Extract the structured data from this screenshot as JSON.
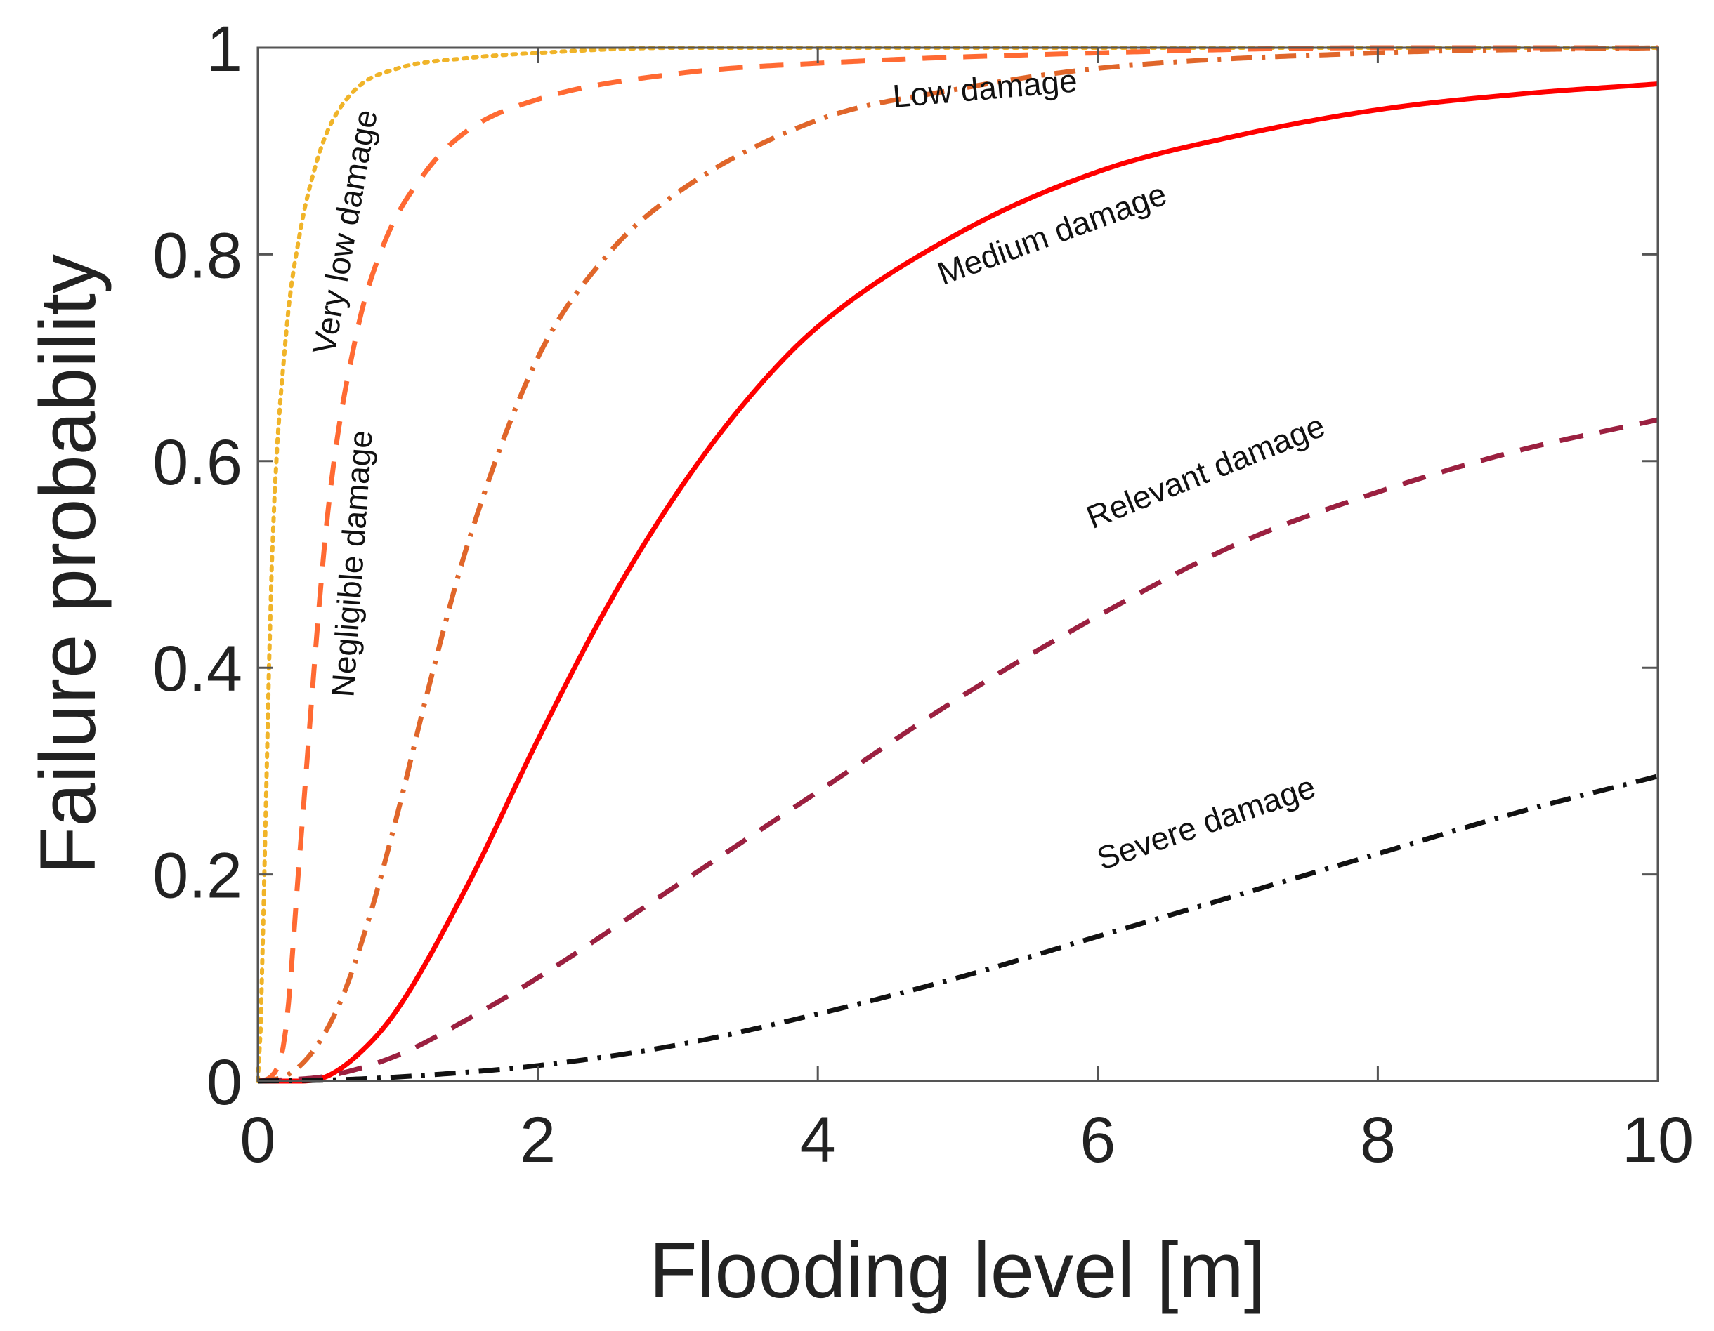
{
  "chart_data": {
    "type": "line",
    "xlabel": "Flooding level [m]",
    "ylabel": "Failure probability",
    "xlim": [
      0,
      10
    ],
    "ylim": [
      0,
      1
    ],
    "xticks": [
      0,
      2,
      4,
      6,
      8,
      10
    ],
    "yticks": [
      0,
      0.2,
      0.4,
      0.6,
      0.8,
      1
    ],
    "xtick_labels": [
      "0",
      "2",
      "4",
      "6",
      "8",
      "10"
    ],
    "ytick_labels": [
      "0",
      "0.2",
      "0.4",
      "0.6",
      "0.8",
      "1"
    ],
    "grid": false,
    "legend": "none",
    "series": [
      {
        "name": "Very low damage",
        "color": "#f0b429",
        "style": "dotted",
        "x": [
          0,
          0.02,
          0.05,
          0.1,
          0.2,
          0.3,
          0.4,
          0.5,
          0.7,
          1,
          1.5,
          2,
          3,
          5,
          10
        ],
        "y": [
          0,
          0.05,
          0.22,
          0.5,
          0.72,
          0.82,
          0.88,
          0.92,
          0.96,
          0.98,
          0.99,
          0.995,
          1,
          1,
          1
        ]
      },
      {
        "name": "Negligible damage",
        "color": "#ff6a33",
        "style": "dashed",
        "x": [
          0,
          0.1,
          0.2,
          0.3,
          0.5,
          0.7,
          0.9,
          1.2,
          1.5,
          2,
          3,
          4,
          6,
          8,
          10
        ],
        "y": [
          0,
          0.005,
          0.05,
          0.22,
          0.55,
          0.72,
          0.81,
          0.88,
          0.92,
          0.95,
          0.975,
          0.985,
          0.995,
          1,
          1
        ]
      },
      {
        "name": "Low damage",
        "color": "#e0662a",
        "style": "dashdot",
        "x": [
          0,
          0.2,
          0.4,
          0.6,
          0.8,
          1,
          1.2,
          1.5,
          2,
          2.5,
          3,
          4,
          5,
          6,
          8,
          10
        ],
        "y": [
          0,
          0.005,
          0.03,
          0.08,
          0.16,
          0.26,
          0.37,
          0.52,
          0.7,
          0.8,
          0.86,
          0.93,
          0.96,
          0.98,
          0.995,
          1
        ]
      },
      {
        "name": "Medium damage",
        "color": "#ff0000",
        "style": "solid",
        "x": [
          0,
          0.3,
          0.5,
          0.75,
          1,
          1.5,
          2,
          2.5,
          3,
          3.5,
          4,
          5,
          6,
          7,
          8,
          9,
          10
        ],
        "y": [
          0,
          0,
          0.005,
          0.03,
          0.07,
          0.19,
          0.33,
          0.46,
          0.57,
          0.66,
          0.73,
          0.82,
          0.88,
          0.915,
          0.94,
          0.955,
          0.965
        ]
      },
      {
        "name": "Relevant damage",
        "color": "#9b2040",
        "style": "dashed",
        "x": [
          0,
          0.5,
          1,
          1.5,
          2,
          3,
          4,
          5,
          6,
          7,
          8,
          9,
          10
        ],
        "y": [
          0,
          0.005,
          0.025,
          0.06,
          0.1,
          0.19,
          0.28,
          0.37,
          0.45,
          0.52,
          0.57,
          0.61,
          0.64
        ]
      },
      {
        "name": "Severe damage",
        "color": "#111111",
        "style": "dashdot",
        "x": [
          0,
          0.5,
          1,
          2,
          3,
          4,
          5,
          6,
          7,
          8,
          9,
          10
        ],
        "y": [
          0,
          0.001,
          0.004,
          0.015,
          0.035,
          0.065,
          0.1,
          0.14,
          0.18,
          0.22,
          0.26,
          0.295
        ]
      }
    ],
    "annotations": [
      {
        "text": "Very low damage",
        "series": "Very low damage",
        "x": 0.7,
        "y": 0.82,
        "angle": -80
      },
      {
        "text": "Negligible damage",
        "series": "Negligible damage",
        "x": 0.75,
        "y": 0.5,
        "angle": -86
      },
      {
        "text": "Low damage",
        "series": "Low damage",
        "x": 5.2,
        "y": 0.95,
        "angle": -5
      },
      {
        "text": "Medium damage",
        "series": "Medium damage",
        "x": 5.7,
        "y": 0.81,
        "angle": -20
      },
      {
        "text": "Relevant damage",
        "series": "Relevant damage",
        "x": 6.8,
        "y": 0.58,
        "angle": -22
      },
      {
        "text": "Severe damage",
        "series": "Severe damage",
        "x": 6.8,
        "y": 0.24,
        "angle": -19
      }
    ]
  }
}
